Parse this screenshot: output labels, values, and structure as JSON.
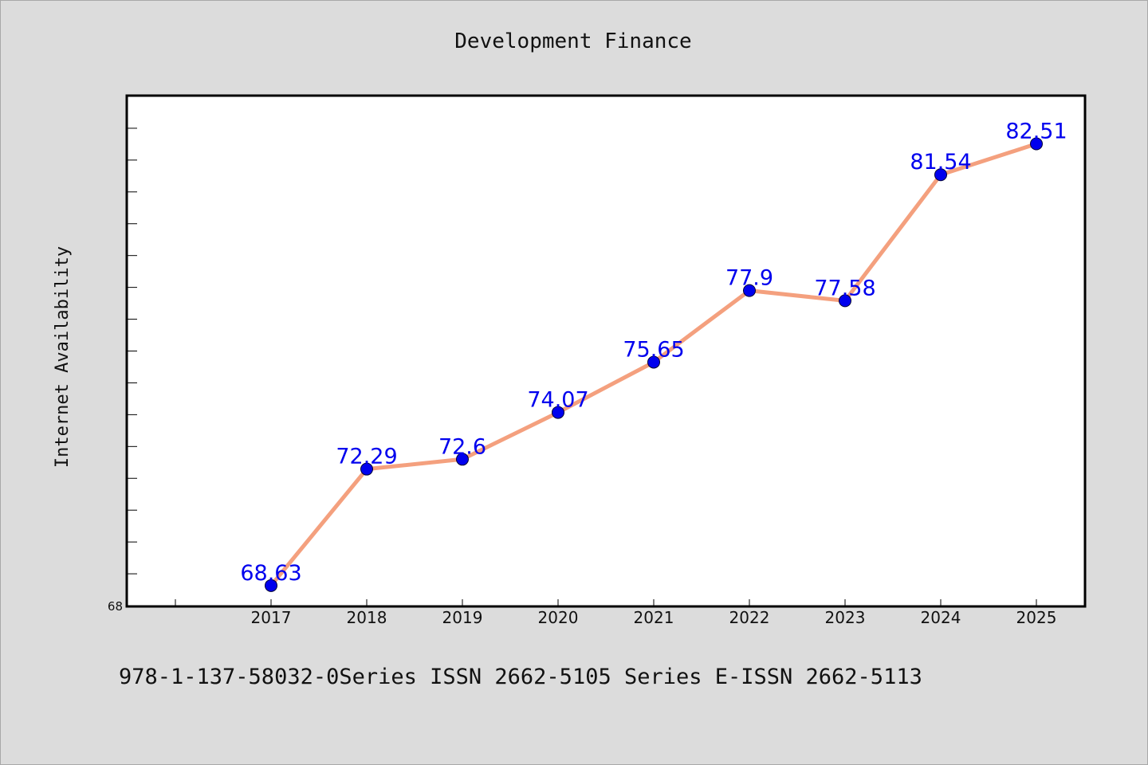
{
  "chart_data": {
    "type": "line",
    "title": "Development Finance",
    "xlabel": "",
    "ylabel": "Internet Availability",
    "x": [
      "2017",
      "2018",
      "2019",
      "2020",
      "2021",
      "2022",
      "2023",
      "2024",
      "2025"
    ],
    "series": [
      {
        "values": [
          68.63,
          72.29,
          72.6,
          74.07,
          75.65,
          77.9,
          77.58,
          81.54,
          82.51
        ],
        "data_labels": [
          "68.63",
          "72.29",
          "72.6",
          "74.07",
          "75.65",
          "77.9",
          "77.58",
          "81.54",
          "82.51"
        ],
        "line_color": "#f4a07e",
        "marker_color": "#0000ee",
        "label_color": "#0000ee"
      }
    ],
    "y_tick_labels": [
      "68"
    ],
    "ylim": [
      68,
      84
    ],
    "grid": false,
    "legend": "none"
  },
  "footer": {
    "text": "978-1-137-58032-0Series ISSN 2662-5105 Series E-ISSN 2662-5113"
  }
}
